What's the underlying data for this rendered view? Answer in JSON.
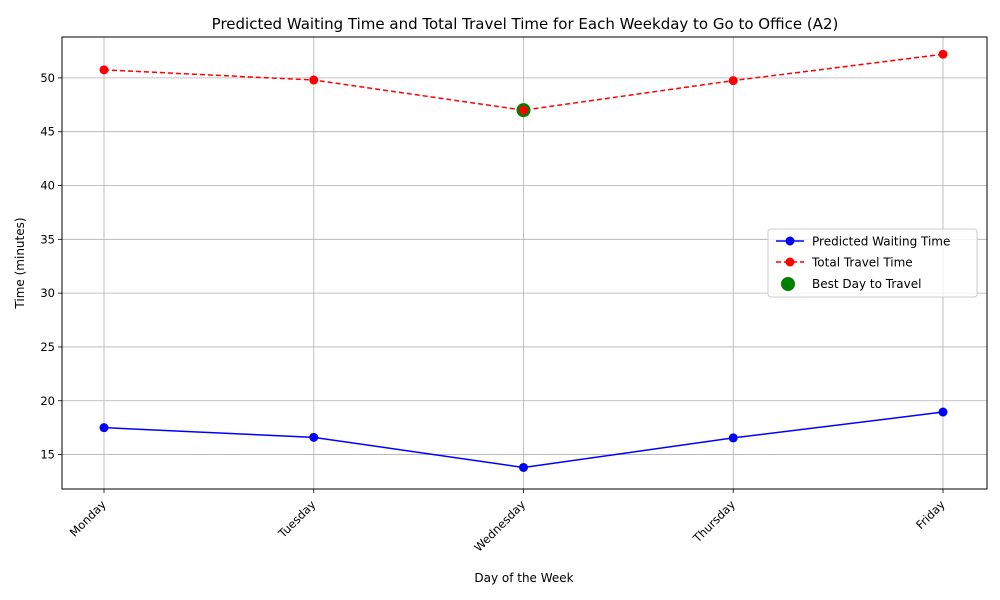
{
  "chart_data": {
    "type": "line",
    "title": "Predicted Waiting Time and Total Travel Time for Each Weekday to Go to Office (A2)",
    "xlabel": "Day of the Week",
    "ylabel": "Time (minutes)",
    "categories": [
      "Monday",
      "Tuesday",
      "Wednesday",
      "Thursday",
      "Friday"
    ],
    "ylim": [
      11.8,
      53.8
    ],
    "yticks": [
      15,
      20,
      25,
      30,
      35,
      40,
      45,
      50
    ],
    "grid": true,
    "legend_position": "center-right",
    "series": [
      {
        "name": "Predicted Waiting Time",
        "values": [
          17.5,
          16.6,
          13.8,
          16.55,
          18.95
        ],
        "color": "#0000ff",
        "style": "solid",
        "marker": "circle"
      },
      {
        "name": "Total Travel Time",
        "values": [
          50.75,
          49.8,
          47.0,
          49.75,
          52.2
        ],
        "color": "#ff0000",
        "style": "dashed",
        "marker": "circle"
      }
    ],
    "highlight": {
      "name": "Best Day to Travel",
      "category": "Wednesday",
      "value": 47.0,
      "color": "#008000"
    }
  }
}
